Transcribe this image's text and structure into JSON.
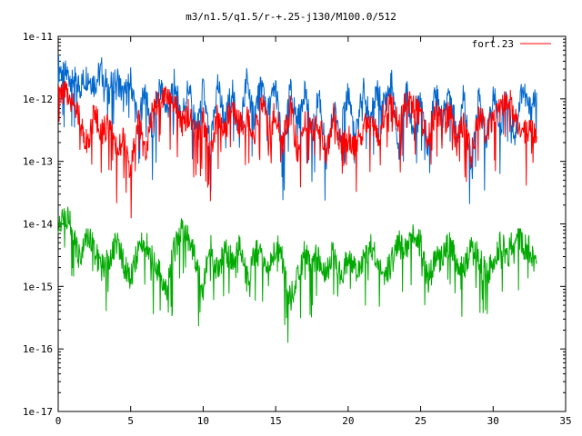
{
  "chart_data": {
    "type": "line",
    "title": "m3/n1.5/q1.5/r-+.25-j130/M100.0/512",
    "xlabel": "",
    "ylabel": "",
    "xlim": [
      0,
      35
    ],
    "ylim_log10": [
      -17,
      -11
    ],
    "y_scale": "log",
    "grid": false,
    "legend_position": "top-right",
    "x_ticks": [
      "0",
      "5",
      "10",
      "15",
      "20",
      "25",
      "30",
      "35"
    ],
    "y_ticks": [
      "1e-17",
      "1e-16",
      "1e-15",
      "1e-14",
      "1e-13",
      "1e-12",
      "1e-11"
    ],
    "series": [
      {
        "name": "",
        "color": "#0066cc",
        "x": [
          0.0,
          0.5,
          1.0,
          1.5,
          2.0,
          2.5,
          3.0,
          3.5,
          4.0,
          4.5,
          5.0,
          5.5,
          6.0,
          6.5,
          7.0,
          7.5,
          8.0,
          8.5,
          9.0,
          9.5,
          10.0,
          10.5,
          11.0,
          11.5,
          12.0,
          12.5,
          13.0,
          13.5,
          14.0,
          14.5,
          15.0,
          15.5,
          16.0,
          16.5,
          17.0,
          17.5,
          18.0,
          18.5,
          19.0,
          19.5,
          20.0,
          20.5,
          21.0,
          21.5,
          22.0,
          22.5,
          23.0,
          23.5,
          24.0,
          24.5,
          25.0,
          25.5,
          26.0,
          26.5,
          27.0,
          27.5,
          28.0,
          28.5,
          29.0,
          29.5,
          30.0,
          30.5,
          31.0,
          31.5,
          32.0,
          32.5,
          33.0
        ],
        "y_log10": [
          -11.5,
          -11.6,
          -11.65,
          -11.8,
          -11.62,
          -11.75,
          -11.55,
          -11.85,
          -11.6,
          -12.0,
          -11.7,
          -12.4,
          -11.8,
          -12.6,
          -11.75,
          -12.2,
          -11.7,
          -12.3,
          -11.8,
          -12.5,
          -11.85,
          -12.8,
          -11.75,
          -12.4,
          -11.8,
          -12.6,
          -11.7,
          -12.3,
          -11.75,
          -12.2,
          -11.8,
          -12.9,
          -11.85,
          -12.4,
          -11.8,
          -12.6,
          -11.9,
          -13.0,
          -12.2,
          -12.5,
          -11.85,
          -12.7,
          -11.8,
          -12.3,
          -11.9,
          -12.1,
          -11.75,
          -12.9,
          -11.8,
          -12.5,
          -11.9,
          -12.8,
          -11.85,
          -12.3,
          -11.8,
          -12.6,
          -11.9,
          -13.2,
          -11.95,
          -12.7,
          -11.9,
          -12.4,
          -11.85,
          -12.6,
          -11.8,
          -12.2,
          -11.9
        ]
      },
      {
        "name": "fort.23",
        "color": "#ff0000",
        "x": [
          0.0,
          0.5,
          1.0,
          1.5,
          2.0,
          2.5,
          3.0,
          3.5,
          4.0,
          4.5,
          5.0,
          5.5,
          6.0,
          6.5,
          7.0,
          7.5,
          8.0,
          8.5,
          9.0,
          9.5,
          10.0,
          10.5,
          11.0,
          11.5,
          12.0,
          12.5,
          13.0,
          13.5,
          14.0,
          14.5,
          15.0,
          15.5,
          16.0,
          16.5,
          17.0,
          17.5,
          18.0,
          18.5,
          19.0,
          19.5,
          20.0,
          20.5,
          21.0,
          21.5,
          22.0,
          22.5,
          23.0,
          23.5,
          24.0,
          24.5,
          25.0,
          25.5,
          26.0,
          26.5,
          27.0,
          27.5,
          28.0,
          28.5,
          29.0,
          29.5,
          30.0,
          30.5,
          31.0,
          31.5,
          32.0,
          32.5,
          33.0
        ],
        "y_log10": [
          -11.85,
          -11.9,
          -12.0,
          -12.3,
          -12.7,
          -12.2,
          -12.5,
          -12.4,
          -12.8,
          -12.6,
          -13.2,
          -12.3,
          -12.9,
          -12.1,
          -12.0,
          -11.9,
          -12.0,
          -12.4,
          -12.2,
          -12.6,
          -12.3,
          -12.9,
          -12.2,
          -12.5,
          -12.1,
          -12.4,
          -12.3,
          -12.6,
          -12.0,
          -12.5,
          -12.2,
          -12.7,
          -12.1,
          -12.8,
          -12.3,
          -12.5,
          -12.4,
          -12.9,
          -12.2,
          -12.7,
          -12.6,
          -12.8,
          -12.5,
          -12.3,
          -12.6,
          -12.2,
          -11.9,
          -12.4,
          -12.0,
          -12.1,
          -12.3,
          -12.6,
          -12.2,
          -12.4,
          -12.2,
          -12.7,
          -12.3,
          -12.9,
          -12.2,
          -12.5,
          -12.3,
          -12.2,
          -11.9,
          -12.3,
          -12.6,
          -12.4,
          -12.6
        ]
      },
      {
        "name": "",
        "color": "#00aa00",
        "x": [
          0.0,
          0.5,
          1.0,
          1.5,
          2.0,
          2.5,
          3.0,
          3.5,
          4.0,
          4.5,
          5.0,
          5.5,
          6.0,
          6.5,
          7.0,
          7.5,
          8.0,
          8.5,
          9.0,
          9.5,
          10.0,
          10.5,
          11.0,
          11.5,
          12.0,
          12.5,
          13.0,
          13.5,
          14.0,
          14.5,
          15.0,
          15.5,
          16.0,
          16.5,
          17.0,
          17.5,
          18.0,
          18.5,
          19.0,
          19.5,
          20.0,
          20.5,
          21.0,
          21.5,
          22.0,
          22.5,
          23.0,
          23.5,
          24.0,
          24.5,
          25.0,
          25.5,
          26.0,
          26.5,
          27.0,
          27.5,
          28.0,
          28.5,
          29.0,
          29.5,
          30.0,
          30.5,
          31.0,
          31.5,
          32.0,
          32.5,
          33.0
        ],
        "y_log10": [
          -14.0,
          -13.8,
          -14.1,
          -14.6,
          -14.2,
          -14.4,
          -14.7,
          -14.5,
          -14.3,
          -14.6,
          -14.9,
          -14.4,
          -14.3,
          -14.5,
          -14.8,
          -15.0,
          -14.4,
          -14.1,
          -14.2,
          -14.6,
          -15.0,
          -14.3,
          -14.8,
          -14.4,
          -14.6,
          -14.3,
          -14.9,
          -14.5,
          -14.4,
          -14.8,
          -14.3,
          -14.6,
          -15.2,
          -14.9,
          -14.4,
          -14.6,
          -14.5,
          -14.8,
          -14.3,
          -14.9,
          -14.5,
          -14.7,
          -14.6,
          -14.3,
          -14.5,
          -14.8,
          -14.6,
          -14.3,
          -14.4,
          -14.2,
          -14.3,
          -14.9,
          -14.6,
          -14.5,
          -14.3,
          -14.6,
          -14.7,
          -14.4,
          -14.5,
          -14.8,
          -14.6,
          -14.3,
          -14.5,
          -14.2,
          -14.3,
          -14.4,
          -14.6
        ]
      }
    ]
  }
}
